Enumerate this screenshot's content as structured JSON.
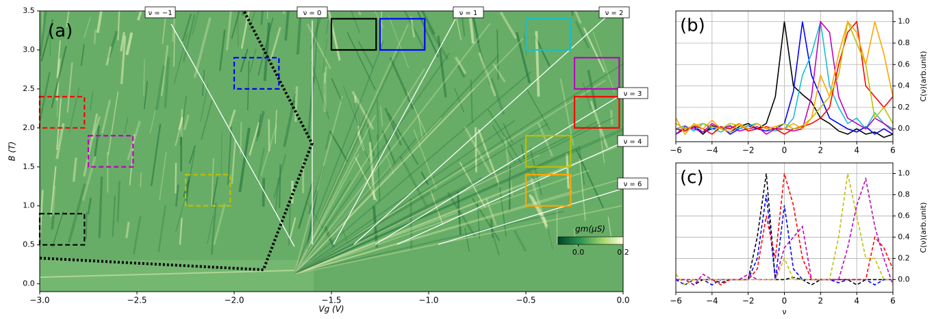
{
  "chart_data": [
    {
      "type": "heatmap",
      "label": "(a)",
      "xlabel": "Vg (V)",
      "ylabel": "B (T)",
      "xlim": [
        -3.0,
        0.0
      ],
      "ylim": [
        -0.1,
        3.5
      ],
      "xticks": [
        {
          "value": -3.0,
          "label": "−3.0"
        },
        {
          "value": -2.5,
          "label": "−2.5"
        },
        {
          "value": -2.0,
          "label": "−2.0"
        },
        {
          "value": -1.5,
          "label": "−1.5"
        },
        {
          "value": -1.0,
          "label": "−1.0"
        },
        {
          "value": -0.5,
          "label": "−0.5"
        },
        {
          "value": 0.0,
          "label": "0.0"
        }
      ],
      "yticks": [
        {
          "value": 0.0,
          "label": "0.0"
        },
        0.5,
        {
          "value": 1.0,
          "label": "1.0"
        },
        1.5,
        {
          "value": 2.0,
          "label": "2.0"
        },
        2.5,
        {
          "value": 3.0,
          "label": "3.0"
        },
        3.5
      ],
      "annotations": [
        "ν = −1",
        "ν = 0",
        "ν = 1",
        "ν = 2",
        "ν = 3",
        "ν = 4",
        "ν = 6"
      ],
      "boundary": {
        "x": [
          -3.0,
          -1.85,
          -1.6,
          -1.95
        ],
        "y": [
          0.33,
          0.18,
          1.8,
          3.5
        ]
      },
      "boxes": [
        {
          "color": "#000000",
          "style": "solid",
          "x": [
            -1.5,
            -1.27
          ],
          "y": [
            3.0,
            3.4
          ]
        },
        {
          "color": "#0000ff",
          "style": "solid",
          "x": [
            -1.25,
            -1.02
          ],
          "y": [
            3.0,
            3.4
          ]
        },
        {
          "color": "#17becf",
          "style": "solid",
          "x": [
            -0.5,
            -0.27
          ],
          "y": [
            3.0,
            3.4
          ]
        },
        {
          "color": "#bf00bf",
          "style": "solid",
          "x": [
            -0.25,
            -0.02
          ],
          "y": [
            2.5,
            2.9
          ]
        },
        {
          "color": "#ff0000",
          "style": "solid",
          "x": [
            -0.25,
            -0.02
          ],
          "y": [
            2.0,
            2.4
          ]
        },
        {
          "color": "#bfbf00",
          "style": "solid",
          "x": [
            -0.5,
            -0.27
          ],
          "y": [
            1.5,
            1.9
          ]
        },
        {
          "color": "#ffa500",
          "style": "solid",
          "x": [
            -0.5,
            -0.27
          ],
          "y": [
            1.0,
            1.4
          ]
        },
        {
          "color": "#0000ff",
          "style": "dashed",
          "x": [
            -2.0,
            -1.77
          ],
          "y": [
            2.5,
            2.9
          ]
        },
        {
          "color": "#ff0000",
          "style": "dashed",
          "x": [
            -3.0,
            -2.77
          ],
          "y": [
            2.0,
            2.4
          ]
        },
        {
          "color": "#bf00bf",
          "style": "dashed",
          "x": [
            -2.75,
            -2.52
          ],
          "y": [
            1.5,
            1.9
          ]
        },
        {
          "color": "#bfbf00",
          "style": "dashed",
          "x": [
            -2.25,
            -2.02
          ],
          "y": [
            1.0,
            1.4
          ]
        },
        {
          "color": "#000000",
          "style": "dashed",
          "x": [
            -3.0,
            -2.77
          ],
          "y": [
            0.5,
            0.9
          ]
        }
      ],
      "colorbar": {
        "label": "gm(μS)",
        "clim": [
          -0.09,
          0.2
        ],
        "ticks": [
          {
            "value": 0.0,
            "label": "0.0"
          },
          0.2
        ]
      }
    },
    {
      "type": "line",
      "label": "(b)",
      "ylabel": "C(ν)(arb.unit)",
      "dashed": false,
      "grid": true,
      "xlim": [
        -6,
        6
      ],
      "ylim": [
        -0.12,
        1.1
      ],
      "y_side": "right",
      "xticks": [
        {
          "value": -6,
          "label": "−6"
        },
        {
          "value": -4,
          "label": "−4"
        },
        {
          "value": -2,
          "label": "−2"
        },
        0,
        2,
        4,
        6
      ],
      "yticks": [
        {
          "value": 0.0,
          "label": "0.0"
        },
        0.2,
        0.4,
        0.6,
        0.8,
        {
          "value": 1.0,
          "label": "1.0"
        }
      ],
      "x": [
        -6,
        -5.5,
        -5,
        -4.5,
        -4,
        -3.5,
        -3,
        -2.5,
        -2,
        -1.5,
        -1,
        -0.5,
        0,
        0.5,
        1,
        1.5,
        2,
        2.5,
        3,
        3.5,
        4,
        4.5,
        5,
        5.5,
        6
      ],
      "series": [
        {
          "color": "#000000",
          "values": [
            0.0,
            -0.02,
            0.02,
            -0.05,
            0.03,
            0.0,
            -0.03,
            0.02,
            0.05,
            0.0,
            0.05,
            0.3,
            1.0,
            0.4,
            0.32,
            0.25,
            0.1,
            0.05,
            -0.02,
            -0.05,
            0.0,
            -0.05,
            -0.03,
            -0.08,
            -0.05
          ]
        },
        {
          "color": "#0000ff",
          "values": [
            -0.05,
            0.0,
            0.02,
            -0.03,
            0.0,
            0.02,
            -0.05,
            0.0,
            0.03,
            0.0,
            -0.02,
            0.0,
            0.05,
            0.35,
            1.0,
            0.5,
            0.3,
            0.1,
            0.05,
            0.0,
            -0.03,
            0.02,
            -0.05,
            0.0,
            -0.05
          ]
        },
        {
          "color": "#17becf",
          "values": [
            0.0,
            0.03,
            -0.02,
            0.05,
            0.0,
            -0.03,
            0.02,
            0.0,
            0.03,
            0.05,
            0.0,
            -0.02,
            0.0,
            0.1,
            0.5,
            0.7,
            1.0,
            0.4,
            0.2,
            0.05,
            0.1,
            0.0,
            0.15,
            0.05,
            0.0
          ]
        },
        {
          "color": "#bf00bf",
          "values": [
            -0.05,
            0.02,
            0.0,
            -0.03,
            0.05,
            0.0,
            0.03,
            -0.02,
            0.0,
            0.02,
            -0.05,
            0.0,
            0.0,
            -0.02,
            0.0,
            0.3,
            1.0,
            0.9,
            0.3,
            0.1,
            0.05,
            0.0,
            0.1,
            0.05,
            -0.02
          ]
        },
        {
          "color": "#ff0000",
          "values": [
            0.0,
            -0.02,
            0.03,
            0.0,
            -0.05,
            0.02,
            0.0,
            0.05,
            -0.02,
            0.0,
            0.02,
            0.0,
            -0.05,
            0.0,
            0.02,
            0.05,
            0.1,
            0.2,
            0.6,
            0.9,
            1.0,
            0.4,
            0.3,
            0.2,
            0.3
          ]
        },
        {
          "color": "#bfbf00",
          "values": [
            0.05,
            0.0,
            0.03,
            0.05,
            0.02,
            0.0,
            0.05,
            0.03,
            0.0,
            0.05,
            0.0,
            0.02,
            0.05,
            0.0,
            0.03,
            0.1,
            0.2,
            0.3,
            0.5,
            1.0,
            0.8,
            0.6,
            0.1,
            0.2,
            0.05
          ]
        },
        {
          "color": "#ffa500",
          "values": [
            0.1,
            -0.05,
            0.05,
            0.0,
            0.08,
            0.0,
            -0.03,
            0.05,
            0.0,
            0.05,
            0.0,
            0.02,
            0.0,
            0.05,
            0.0,
            0.1,
            0.5,
            0.3,
            0.7,
            1.0,
            0.9,
            0.6,
            1.0,
            0.7,
            0.3
          ]
        }
      ]
    },
    {
      "type": "line",
      "label": "(c)",
      "xlabel": "ν",
      "ylabel": "C(ν)(arb.unit)",
      "dashed": true,
      "grid": true,
      "xlim": [
        -6,
        6
      ],
      "ylim": [
        -0.12,
        1.1
      ],
      "y_side": "right",
      "xticks": [
        {
          "value": -6,
          "label": "−6"
        },
        {
          "value": -4,
          "label": "−4"
        },
        {
          "value": -2,
          "label": "−2"
        },
        0,
        2,
        4,
        6
      ],
      "yticks": [
        {
          "value": 0.0,
          "label": "0.0"
        },
        0.2,
        0.4,
        0.6,
        0.8,
        {
          "value": 1.0,
          "label": "1.0"
        }
      ],
      "x": [
        -6,
        -5.5,
        -5,
        -4.5,
        -4,
        -3.5,
        -3,
        -2.5,
        -2,
        -1.5,
        -1,
        -0.5,
        0,
        0.5,
        1,
        1.5,
        2,
        2.5,
        3,
        3.5,
        4,
        4.5,
        5,
        5.5,
        6
      ],
      "series": [
        {
          "color": "#000000",
          "values": [
            0.0,
            0.0,
            -0.05,
            0.0,
            0.0,
            -0.03,
            0.0,
            0.0,
            0.0,
            0.4,
            1.0,
            0.0,
            0.0,
            0.02,
            0.0,
            -0.05,
            0.0,
            0.0,
            0.0,
            0.0,
            -0.05,
            0.0,
            0.0,
            0.0,
            0.0
          ]
        },
        {
          "color": "#0000ff",
          "values": [
            0.0,
            -0.05,
            0.0,
            0.0,
            -0.05,
            0.0,
            0.0,
            0.0,
            0.0,
            0.2,
            0.8,
            0.0,
            0.7,
            0.1,
            0.0,
            0.0,
            0.0,
            0.0,
            -0.03,
            0.0,
            0.0,
            0.0,
            -0.05,
            0.0,
            0.0
          ]
        },
        {
          "color": "#ff0000",
          "values": [
            0.0,
            0.0,
            0.0,
            0.0,
            0.0,
            -0.05,
            0.0,
            0.0,
            0.0,
            0.1,
            0.6,
            0.2,
            1.0,
            0.7,
            0.2,
            0.0,
            0.0,
            0.0,
            0.0,
            0.0,
            0.0,
            0.0,
            0.4,
            0.3,
            0.1
          ]
        },
        {
          "color": "#bf00bf",
          "values": [
            0.0,
            0.0,
            -0.05,
            0.05,
            0.0,
            0.0,
            0.0,
            0.0,
            0.05,
            0.0,
            0.0,
            0.0,
            0.3,
            0.4,
            0.5,
            0.0,
            0.0,
            0.0,
            0.0,
            0.3,
            0.7,
            0.95,
            0.5,
            0.2,
            -0.05
          ]
        },
        {
          "color": "#bfbf00",
          "values": [
            0.05,
            -0.05,
            0.0,
            0.0,
            0.0,
            0.0,
            0.0,
            0.0,
            0.0,
            0.0,
            0.0,
            0.0,
            0.2,
            0.0,
            0.0,
            0.0,
            0.0,
            0.0,
            0.4,
            1.0,
            0.6,
            0.2,
            0.2,
            0.0,
            0.0
          ]
        }
      ]
    }
  ]
}
